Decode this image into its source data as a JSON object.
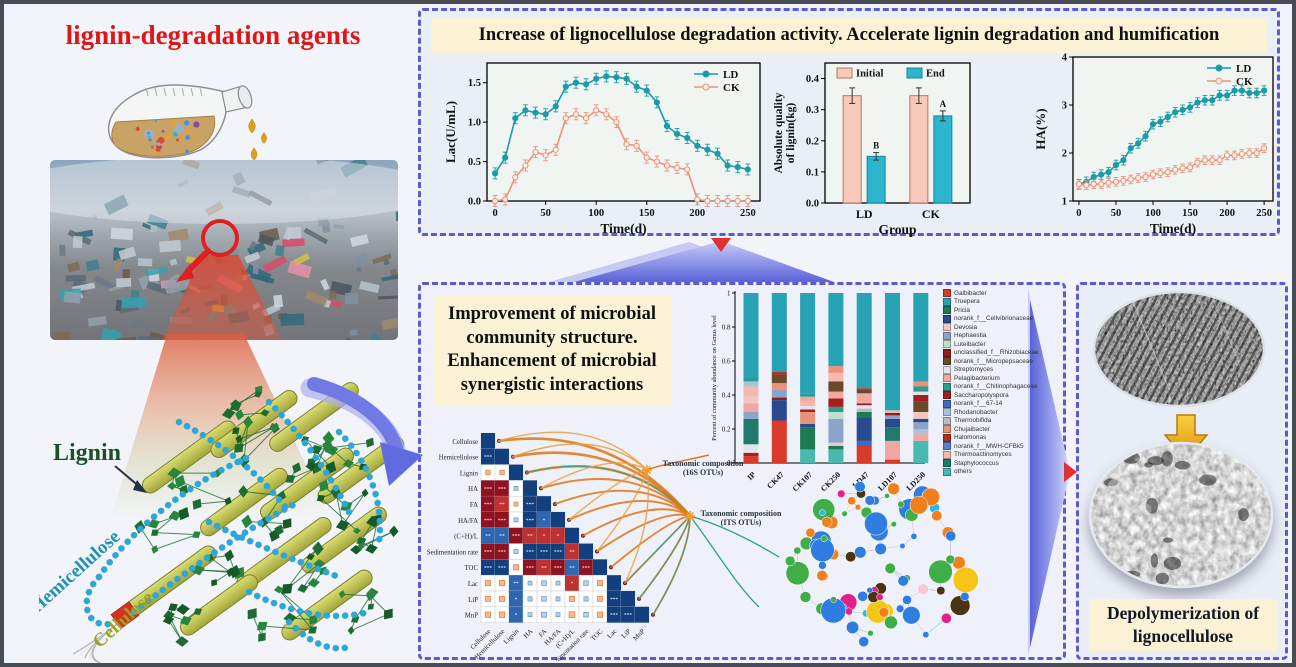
{
  "figure": {
    "left": {
      "title": "lignin-degradation agents",
      "structure_labels": {
        "lignin": "Lignin",
        "hemicellulose": "Hemicellulose",
        "cellulose": "Cellulose"
      }
    },
    "top_panel": {
      "headline": "Increase of lignocellulose degradation activity. Accelerate lignin degradation and humification"
    },
    "middle_panel": {
      "headline": "Improvement of microbial community structure. Enhancement of microbial synergistic interactions",
      "hub_16s": {
        "line1": "Taxonomic composition",
        "line2": "(16S OTUs)"
      },
      "hub_its": {
        "line1": "Taxonomic composition",
        "line2": "(ITS OTUs)"
      },
      "network_palette": [
        "#2f7de1",
        "#3fae49",
        "#f07f1e",
        "#4a3212",
        "#e0218a",
        "#f5c518",
        "#f8c8d0",
        "#30b5e8"
      ]
    },
    "right_panel": {
      "caption": "Depolymerization of lignocellulose"
    },
    "colors": {
      "panel_border": "#5a5bd0",
      "ld": "#1b9aaa",
      "ck": "#e8937c",
      "initial_bar": "#f6c9ba",
      "end_bar": "#2cb5cd",
      "headline_bg": "#fbf1d4",
      "title_red": "#e01616"
    }
  },
  "chart_data": [
    {
      "id": "laccase_activity",
      "type": "line",
      "xlabel": "Time(d)",
      "ylabel": "Lac(U/mL)",
      "xlim": [
        -8,
        262
      ],
      "ylim": [
        0,
        1.75
      ],
      "xticks": [
        0,
        50,
        100,
        150,
        200,
        250
      ],
      "yticks": [
        0,
        0.5,
        1,
        1.5
      ],
      "ydec": 1,
      "x": [
        0,
        10,
        20,
        30,
        40,
        50,
        60,
        70,
        80,
        90,
        100,
        110,
        120,
        130,
        140,
        150,
        160,
        170,
        180,
        190,
        200,
        210,
        220,
        230,
        240,
        250
      ],
      "series": [
        {
          "name": "LD",
          "color": "#1b9aaa",
          "err": 0.07,
          "values": [
            0.35,
            0.55,
            1.05,
            1.15,
            1.12,
            1.1,
            1.2,
            1.45,
            1.5,
            1.48,
            1.55,
            1.58,
            1.57,
            1.55,
            1.45,
            1.4,
            1.25,
            0.95,
            0.85,
            0.8,
            0.7,
            0.65,
            0.6,
            0.45,
            0.43,
            0.4
          ]
        },
        {
          "name": "CK",
          "color": "#e8937c",
          "err": 0.07,
          "values": [
            0.0,
            0.02,
            0.3,
            0.45,
            0.62,
            0.58,
            0.65,
            1.05,
            1.1,
            1.05,
            1.15,
            1.1,
            1.0,
            0.72,
            0.7,
            0.55,
            0.5,
            0.45,
            0.42,
            0.4,
            0.02,
            0.0,
            0.0,
            0.0,
            0.0,
            0.0
          ]
        }
      ]
    },
    {
      "id": "lignin_mass",
      "type": "bar",
      "xlabel": "Group",
      "ylabel": "Absolute quality of lignin(kg)",
      "ylabel_lines": [
        "Absolute quality",
        "of lignin(kg)"
      ],
      "categories": [
        "LD",
        "CK"
      ],
      "ylim": [
        0,
        0.45
      ],
      "yticks": [
        0,
        0.1,
        0.2,
        0.3,
        0.4
      ],
      "ydec": 1,
      "series": [
        {
          "name": "Initial",
          "color": "#f6c9ba",
          "edge": "#c4705c",
          "values": [
            0.345,
            0.345
          ],
          "errors": [
            0.025,
            0.025
          ],
          "sig": [
            "",
            ""
          ]
        },
        {
          "name": "End",
          "color": "#2cb5cd",
          "edge": "#17879c",
          "values": [
            0.15,
            0.28
          ],
          "errors": [
            0.012,
            0.016
          ],
          "sig": [
            "B",
            "A"
          ]
        }
      ]
    },
    {
      "id": "humic_acid",
      "type": "line",
      "xlabel": "Time(d)",
      "ylabel": "HA(%)",
      "xlim": [
        -8,
        262
      ],
      "ylim": [
        1,
        4
      ],
      "xticks": [
        0,
        50,
        100,
        150,
        200,
        250
      ],
      "yticks": [
        1,
        2,
        3,
        4
      ],
      "ydec": 0,
      "x": [
        0,
        10,
        20,
        30,
        40,
        50,
        60,
        70,
        80,
        90,
        100,
        110,
        120,
        130,
        140,
        150,
        160,
        170,
        180,
        190,
        200,
        210,
        220,
        230,
        240,
        250
      ],
      "series": [
        {
          "name": "LD",
          "color": "#1b9aaa",
          "err": 0.1,
          "values": [
            1.35,
            1.4,
            1.5,
            1.55,
            1.6,
            1.75,
            1.85,
            2.1,
            2.2,
            2.35,
            2.6,
            2.65,
            2.75,
            2.85,
            2.9,
            2.95,
            3.05,
            3.1,
            3.1,
            3.2,
            3.2,
            3.3,
            3.3,
            3.25,
            3.25,
            3.3
          ]
        },
        {
          "name": "CK",
          "color": "#e8937c",
          "err": 0.09,
          "values": [
            1.35,
            1.33,
            1.35,
            1.35,
            1.38,
            1.4,
            1.42,
            1.45,
            1.48,
            1.5,
            1.55,
            1.58,
            1.6,
            1.65,
            1.68,
            1.7,
            1.8,
            1.85,
            1.85,
            1.85,
            1.95,
            1.95,
            1.98,
            2.0,
            2.0,
            2.1
          ]
        }
      ]
    },
    {
      "id": "correlation_matrix",
      "type": "heatmap",
      "variables": [
        "Cellulose",
        "Hemicellulose",
        "Lignin",
        "HA",
        "FA",
        "HA/FA",
        "(C+H)/L",
        "Sedimentation rate",
        "TOC",
        "Lac",
        "LiP",
        "MnP"
      ],
      "positive_color": "#123f7e",
      "negative_color": "#8f1220",
      "values": [
        [
          1
        ],
        [
          0.97,
          1
        ],
        [
          -0.35,
          -0.35,
          1
        ],
        [
          -0.88,
          -0.9,
          0.15,
          1
        ],
        [
          -0.85,
          -0.82,
          -0.25,
          0.85,
          1
        ],
        [
          -0.9,
          -0.88,
          0.15,
          0.9,
          0.65,
          1
        ],
        [
          0.75,
          0.72,
          -0.85,
          -0.72,
          -0.6,
          -0.62,
          1
        ],
        [
          -0.9,
          -0.9,
          0.3,
          0.88,
          0.85,
          0.88,
          -0.8,
          1
        ],
        [
          0.9,
          0.88,
          -0.4,
          -0.85,
          -0.8,
          -0.85,
          0.75,
          -0.9,
          1
        ],
        [
          -0.4,
          -0.42,
          0.8,
          0.3,
          0.35,
          0.1,
          -0.6,
          0.35,
          -0.4,
          1
        ],
        [
          -0.38,
          -0.4,
          0.6,
          0.32,
          0.35,
          0.15,
          -0.4,
          0.32,
          -0.38,
          0.9,
          1
        ],
        [
          -0.42,
          -0.42,
          0.6,
          0.3,
          0.38,
          0.15,
          -0.45,
          0.35,
          -0.42,
          0.88,
          0.9,
          1
        ]
      ]
    },
    {
      "id": "community_composition",
      "type": "bar",
      "stacked": true,
      "ylabel": "Percent of community abundance on Genus level",
      "categories": [
        "IP",
        "CK47",
        "CK107",
        "CK250",
        "LD47",
        "LD107",
        "LD250"
      ],
      "ylim": [
        0,
        1
      ],
      "yticks": [
        0,
        0.2,
        0.4,
        0.6,
        0.8,
        1
      ],
      "genera": [
        {
          "name": "Galbibacter",
          "color": "#d93a2b"
        },
        {
          "name": "Truepera",
          "color": "#28a3b5"
        },
        {
          "name": "Pricia",
          "color": "#1e7a52"
        },
        {
          "name": "norank_f__Cellvibrionaceae",
          "color": "#274b8e"
        },
        {
          "name": "Devosia",
          "color": "#f2c6c2"
        },
        {
          "name": "Hephaestia",
          "color": "#8ea3c9"
        },
        {
          "name": "Luteibacter",
          "color": "#bfe0c9"
        },
        {
          "name": "unclassified_f__Rhizobiaceae",
          "color": "#8f1f1f"
        },
        {
          "name": "norank_f__Micropepsaceae",
          "color": "#6b4a2b"
        },
        {
          "name": "Streptomyces",
          "color": "#e2e5e8"
        },
        {
          "name": "Pelagibacterium",
          "color": "#f0a8a0"
        },
        {
          "name": "norank_f__Chitinophagaceae",
          "color": "#2a9d8f"
        },
        {
          "name": "Saccharopolyspora",
          "color": "#a32020"
        },
        {
          "name": "norank_f__67-14",
          "color": "#3a6bc0"
        },
        {
          "name": "Rhodanobacter",
          "color": "#a8c4dc"
        },
        {
          "name": "Thermobifida",
          "color": "#b4bcc6"
        },
        {
          "name": "Chujaibacter",
          "color": "#e8927a"
        },
        {
          "name": "Halomonas",
          "color": "#b03020"
        },
        {
          "name": "norank_f__MWH-CFBk5",
          "color": "#5a7fd0"
        },
        {
          "name": "Thermoactinomyces",
          "color": "#f4b8ae"
        },
        {
          "name": "Staphylococcus",
          "color": "#1f7a6e"
        },
        {
          "name": "others",
          "color": "#49b8b0"
        }
      ],
      "bars": [
        {
          "category": "IP",
          "segments": [
            [
              0,
              0.04
            ],
            [
              12,
              0.02
            ],
            [
              9,
              0.05
            ],
            [
              20,
              0.15
            ],
            [
              5,
              0.04
            ],
            [
              10,
              0.05
            ],
            [
              4,
              0.04
            ],
            [
              19,
              0.06
            ],
            [
              14,
              0.03
            ],
            [
              11,
              0.02
            ],
            [
              1,
              0.5
            ]
          ]
        },
        {
          "category": "CK47",
          "segments": [
            [
              0,
              0.25
            ],
            [
              3,
              0.12
            ],
            [
              7,
              0.015
            ],
            [
              5,
              0.045
            ],
            [
              16,
              0.04
            ],
            [
              8,
              0.05
            ],
            [
              17,
              0.015
            ],
            [
              1,
              0.465
            ]
          ]
        },
        {
          "category": "CK107",
          "segments": [
            [
              21,
              0.08
            ],
            [
              2,
              0.13
            ],
            [
              3,
              0.02
            ],
            [
              16,
              0.07
            ],
            [
              12,
              0.015
            ],
            [
              9,
              0.02
            ],
            [
              19,
              0.025
            ],
            [
              10,
              0.03
            ],
            [
              11,
              0.02
            ],
            [
              1,
              0.59
            ]
          ]
        },
        {
          "category": "CK250",
          "segments": [
            [
              21,
              0.08
            ],
            [
              2,
              0.02
            ],
            [
              4,
              0.02
            ],
            [
              5,
              0.14
            ],
            [
              6,
              0.04
            ],
            [
              11,
              0.03
            ],
            [
              12,
              0.05
            ],
            [
              10,
              0.04
            ],
            [
              8,
              0.06
            ],
            [
              19,
              0.05
            ],
            [
              16,
              0.04
            ],
            [
              1,
              0.43
            ]
          ]
        },
        {
          "category": "LD47",
          "segments": [
            [
              0,
              0.1
            ],
            [
              13,
              0.03
            ],
            [
              3,
              0.14
            ],
            [
              2,
              0.03
            ],
            [
              15,
              0.02
            ],
            [
              9,
              0.02
            ],
            [
              7,
              0.01
            ],
            [
              10,
              0.06
            ],
            [
              8,
              0.02
            ],
            [
              17,
              0.01
            ],
            [
              1,
              0.56
            ]
          ]
        },
        {
          "category": "LD107",
          "segments": [
            [
              0,
              0.02
            ],
            [
              10,
              0.11
            ],
            [
              20,
              0.08
            ],
            [
              3,
              0.05
            ],
            [
              5,
              0.02
            ],
            [
              7,
              0.015
            ],
            [
              19,
              0.015
            ],
            [
              1,
              0.69
            ]
          ]
        },
        {
          "category": "LD250",
          "segments": [
            [
              21,
              0.13
            ],
            [
              10,
              0.04
            ],
            [
              14,
              0.03
            ],
            [
              5,
              0.04
            ],
            [
              3,
              0.02
            ],
            [
              4,
              0.04
            ],
            [
              8,
              0.06
            ],
            [
              12,
              0.04
            ],
            [
              9,
              0.02
            ],
            [
              11,
              0.03
            ],
            [
              16,
              0.03
            ],
            [
              1,
              0.52
            ]
          ]
        }
      ]
    }
  ]
}
